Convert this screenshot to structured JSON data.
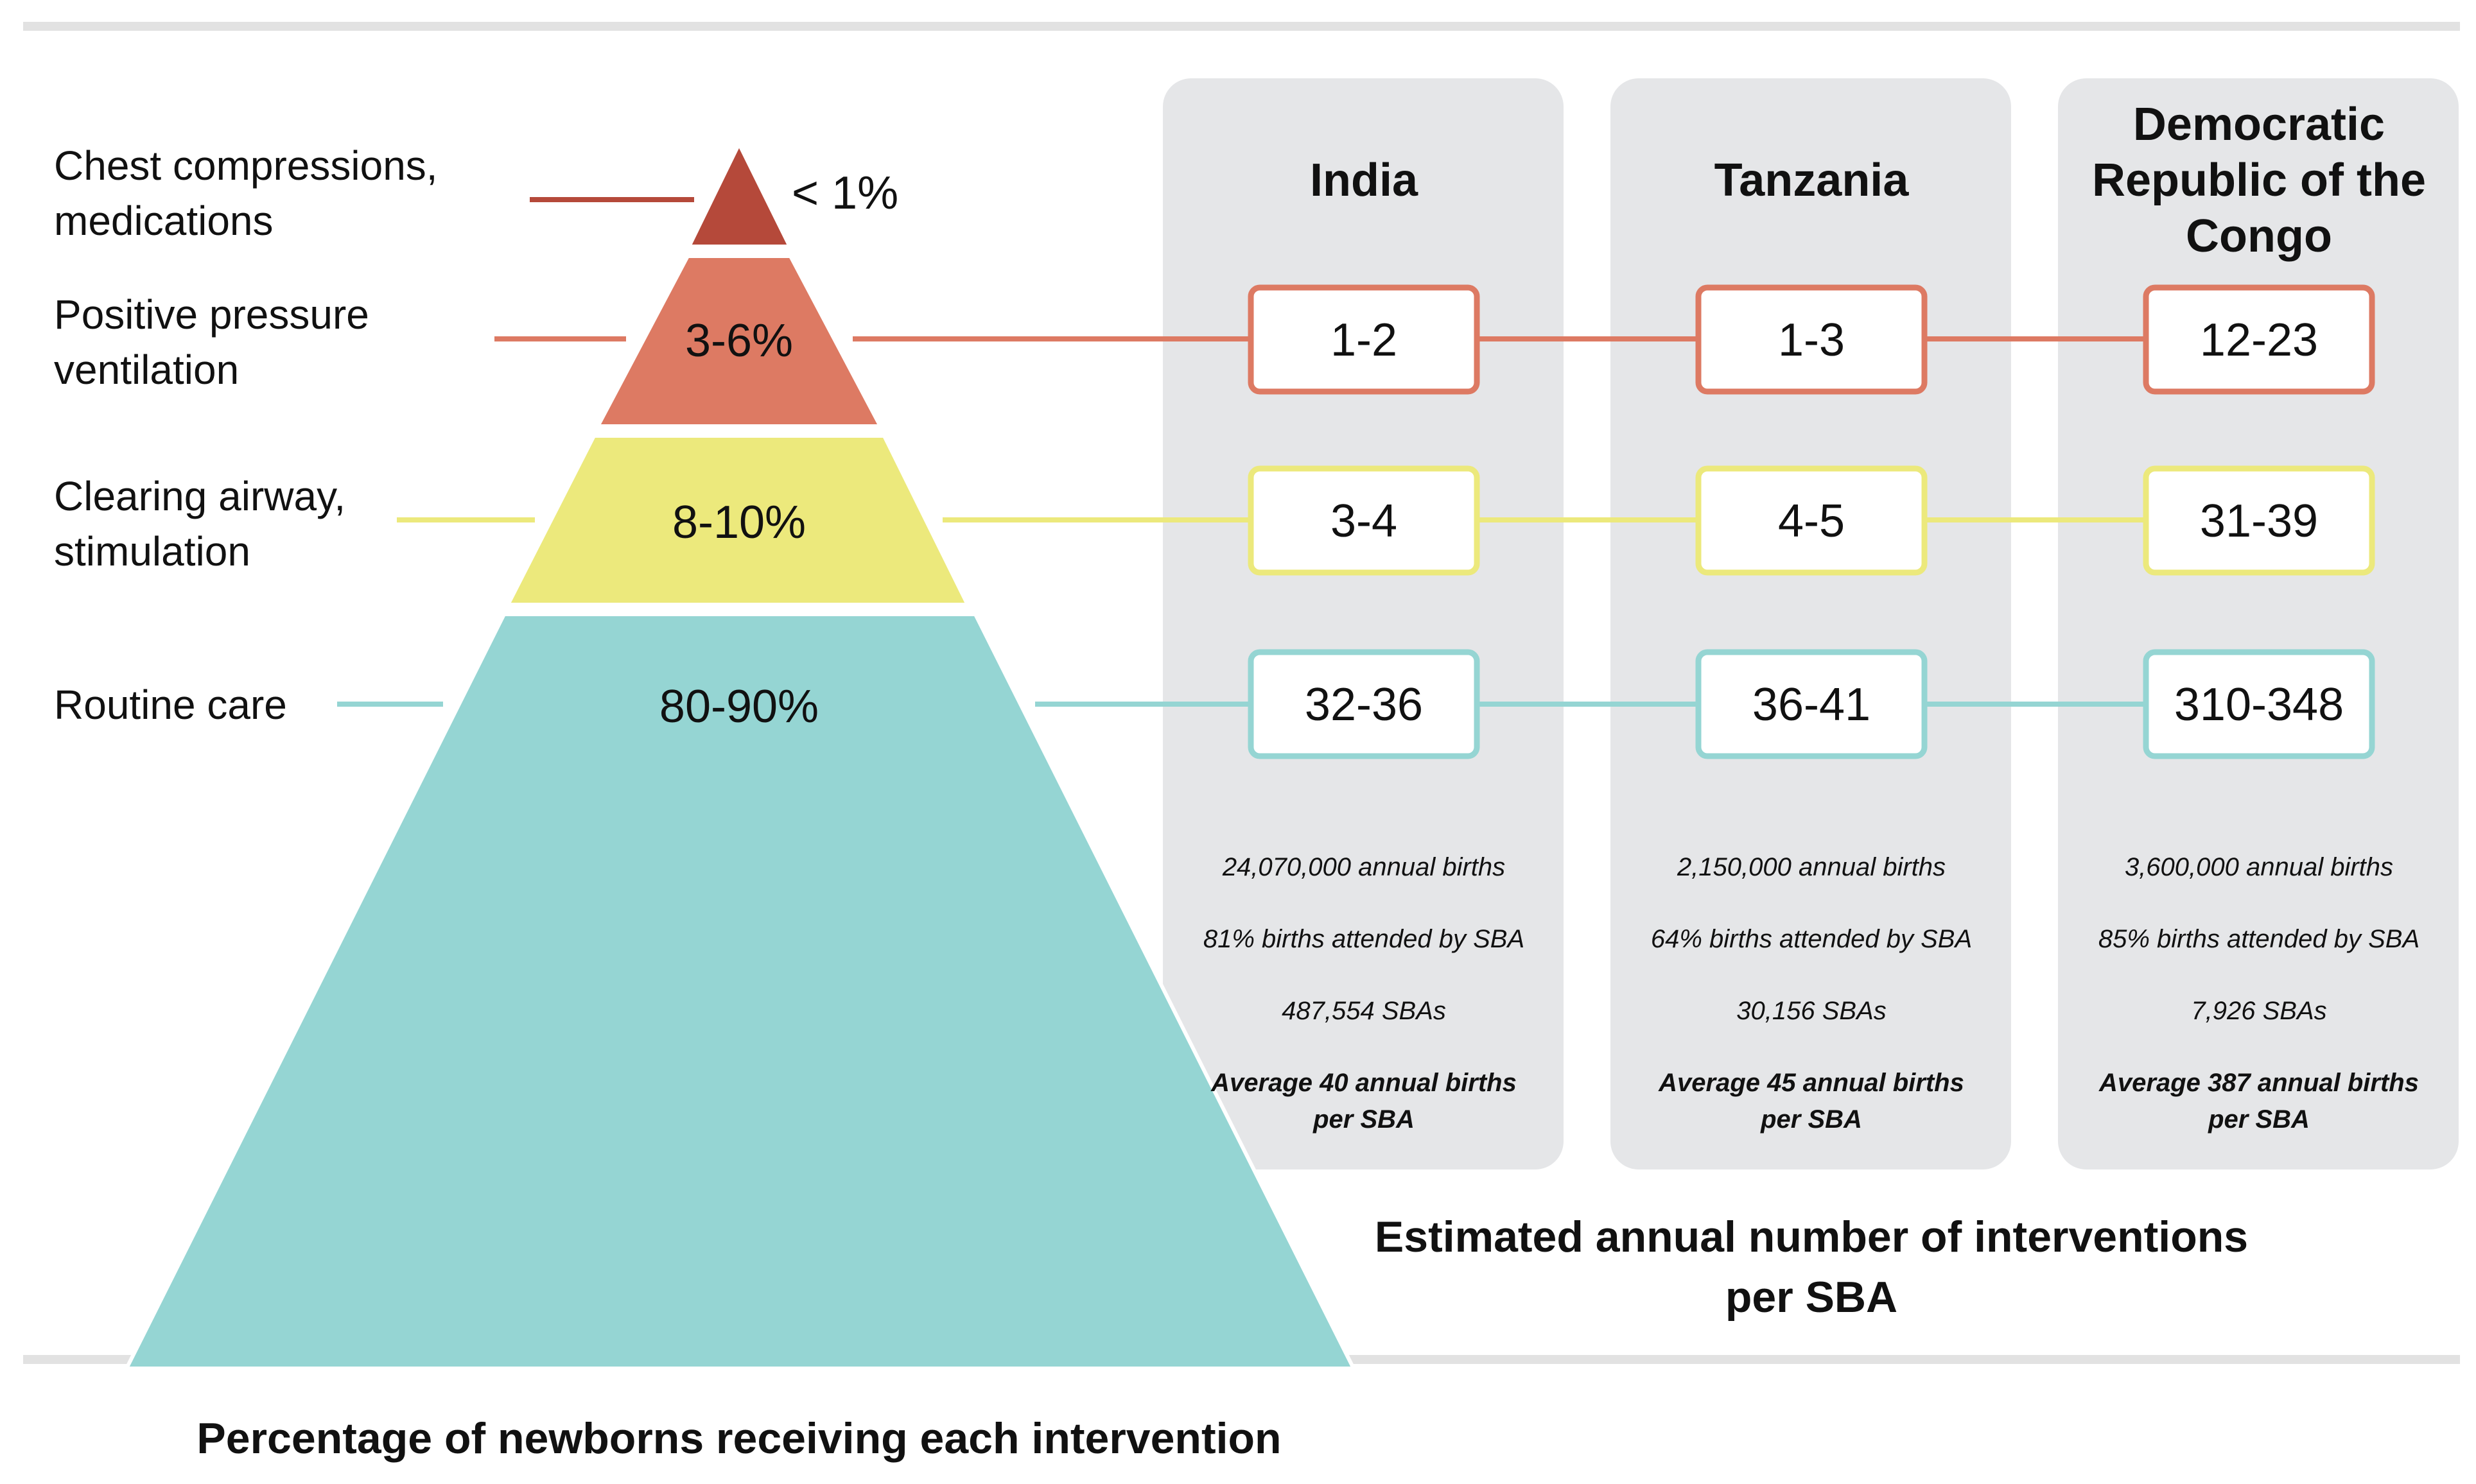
{
  "colors": {
    "red": "#b5493a",
    "orange": "#dd7a63",
    "yellow": "#ece97c",
    "teal": "#95d5d3",
    "panel": "#e5e6e8",
    "rule": "#e2e2e2"
  },
  "levels": [
    {
      "label_lines": [
        "Chest compressions,",
        "medications"
      ],
      "pct": "< 1%",
      "color": "#b5493a"
    },
    {
      "label_lines": [
        "Positive pressure",
        "ventilation"
      ],
      "pct": "3-6%",
      "color": "#dd7a63"
    },
    {
      "label_lines": [
        "Clearing airway,",
        "stimulation"
      ],
      "pct": "8-10%",
      "color": "#ece97c"
    },
    {
      "label_lines": [
        "Routine care"
      ],
      "pct": "80-90%",
      "color": "#95d5d3"
    }
  ],
  "countries": [
    {
      "name_lines": [
        "India"
      ],
      "values": [
        "1-2",
        "3-4",
        "32-36"
      ],
      "births": "24,070,000 annual births",
      "attended": "81% births attended by SBA",
      "sbas": "487,554 SBAs",
      "average_lines": [
        "Average 40 annual births",
        "per SBA"
      ]
    },
    {
      "name_lines": [
        "Tanzania"
      ],
      "values": [
        "1-3",
        "4-5",
        "36-41"
      ],
      "births": "2,150,000 annual births",
      "attended": "64% births attended by SBA",
      "sbas": "30,156 SBAs",
      "average_lines": [
        "Average 45 annual births",
        "per SBA"
      ]
    },
    {
      "name_lines": [
        "Democratic",
        "Republic of the",
        "Congo"
      ],
      "values": [
        "12-23",
        "31-39",
        "310-348"
      ],
      "births": "3,600,000 annual births",
      "attended": "85% births attended by SBA",
      "sbas": "7,926 SBAs",
      "average_lines": [
        "Average 387 annual births",
        "per SBA"
      ]
    }
  ],
  "right_caption_lines": [
    "Estimated annual number of interventions",
    "per SBA"
  ],
  "bottom_caption": "Percentage of newborns receiving each intervention"
}
